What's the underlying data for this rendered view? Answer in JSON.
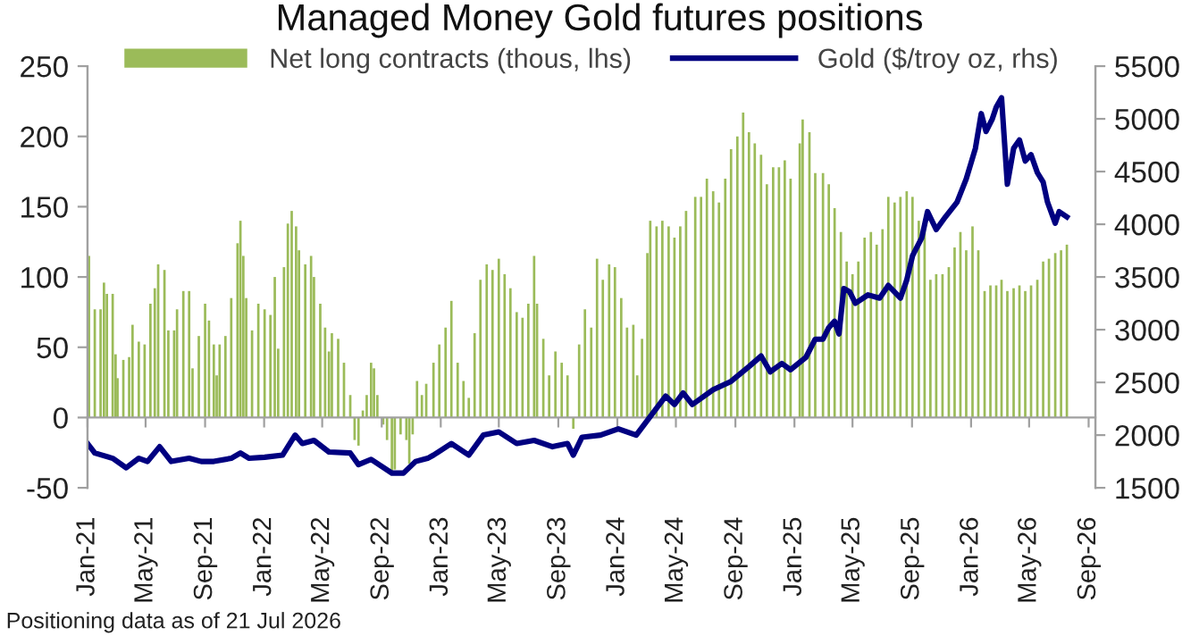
{
  "chart_data": {
    "type": "bar",
    "title": "Managed Money Gold futures positions",
    "annotations": [
      "Positioning data as of 21 Jul 2026"
    ],
    "xlim": [
      "2021-01-01",
      "2026-09-15"
    ],
    "xticks": [
      {
        "value": "2021-01-01",
        "label": "Jan-21"
      },
      {
        "value": "2021-05-01",
        "label": "May-21"
      },
      {
        "value": "2021-09-01",
        "label": "Sep-21"
      },
      {
        "value": "2022-01-01",
        "label": "Jan-22"
      },
      {
        "value": "2022-05-01",
        "label": "May-22"
      },
      {
        "value": "2022-09-01",
        "label": "Sep-22"
      },
      {
        "value": "2023-01-01",
        "label": "Jan-23"
      },
      {
        "value": "2023-05-01",
        "label": "May-23"
      },
      {
        "value": "2023-09-01",
        "label": "Sep-23"
      },
      {
        "value": "2024-01-01",
        "label": "Jan-24"
      },
      {
        "value": "2024-05-01",
        "label": "May-24"
      },
      {
        "value": "2024-09-01",
        "label": "Sep-24"
      },
      {
        "value": "2025-01-01",
        "label": "Jan-25"
      },
      {
        "value": "2025-05-01",
        "label": "May-25"
      },
      {
        "value": "2025-09-01",
        "label": "Sep-25"
      },
      {
        "value": "2026-01-01",
        "label": "Jan-26"
      },
      {
        "value": "2026-05-01",
        "label": "May-26"
      },
      {
        "value": "2026-09-01",
        "label": "Sep-26"
      }
    ],
    "ylim": [
      -50,
      250
    ],
    "yticks": [
      -50,
      0,
      50,
      100,
      150,
      200,
      250
    ],
    "y2lim": [
      1500,
      5500
    ],
    "y2ticks": [
      1500,
      2000,
      2500,
      3000,
      3500,
      4000,
      4500,
      5000,
      5500
    ],
    "legend": "top",
    "series": [
      {
        "name": "Net long contracts (thous, lhs)",
        "color": "#9bbb59",
        "x": [
          "2021-01-04",
          "2021-01-16",
          "2021-01-28",
          "2021-02-04",
          "2021-02-10",
          "2021-02-22",
          "2021-02-28",
          "2021-03-04",
          "2021-03-16",
          "2021-03-28",
          "2021-04-04",
          "2021-04-17",
          "2021-04-29",
          "2021-05-11",
          "2021-05-20",
          "2021-05-27",
          "2021-06-09",
          "2021-06-17",
          "2021-06-29",
          "2021-07-05",
          "2021-07-18",
          "2021-07-30",
          "2021-08-06",
          "2021-08-19",
          "2021-09-01",
          "2021-09-09",
          "2021-09-19",
          "2021-09-25",
          "2021-10-01",
          "2021-10-13",
          "2021-10-25",
          "2021-11-07",
          "2021-11-13",
          "2021-11-19",
          "2021-11-25",
          "2021-12-07",
          "2021-12-20",
          "2022-01-02",
          "2022-01-14",
          "2022-01-23",
          "2022-01-30",
          "2022-02-11",
          "2022-02-19",
          "2022-02-27",
          "2022-03-08",
          "2022-03-14",
          "2022-03-27",
          "2022-04-08",
          "2022-04-14",
          "2022-04-27",
          "2022-05-07",
          "2022-05-15",
          "2022-05-21",
          "2022-06-03",
          "2022-06-15",
          "2022-06-28",
          "2022-07-07",
          "2022-07-15",
          "2022-07-24",
          "2022-08-01",
          "2022-08-10",
          "2022-08-16",
          "2022-08-23",
          "2022-09-04",
          "2022-09-12",
          "2022-09-22",
          "2022-09-28",
          "2022-10-10",
          "2022-10-22",
          "2022-10-28",
          "2022-11-04",
          "2022-11-13",
          "2022-11-23",
          "2022-12-02",
          "2022-12-17",
          "2022-12-29",
          "2023-01-11",
          "2023-01-23",
          "2023-02-05",
          "2023-02-17",
          "2023-02-28",
          "2023-03-12",
          "2023-03-24",
          "2023-04-06",
          "2023-04-18",
          "2023-05-01",
          "2023-05-13",
          "2023-05-25",
          "2023-06-07",
          "2023-06-19",
          "2023-07-01",
          "2023-07-13",
          "2023-07-19",
          "2023-08-01",
          "2023-08-13",
          "2023-08-26",
          "2023-09-08",
          "2023-09-20",
          "2023-10-02",
          "2023-10-14",
          "2023-10-26",
          "2023-11-08",
          "2023-11-20",
          "2023-12-02",
          "2023-12-15",
          "2023-12-27",
          "2024-01-09",
          "2024-01-21",
          "2024-02-03",
          "2024-02-11",
          "2024-02-21",
          "2024-03-03",
          "2024-03-09",
          "2024-03-22",
          "2024-04-03",
          "2024-04-16",
          "2024-04-28",
          "2024-05-10",
          "2024-05-22",
          "2024-06-10",
          "2024-06-22",
          "2024-07-04",
          "2024-07-17",
          "2024-07-29",
          "2024-08-11",
          "2024-08-23",
          "2024-09-05",
          "2024-09-17",
          "2024-09-29",
          "2024-10-11",
          "2024-10-24",
          "2024-11-05",
          "2024-11-18",
          "2024-11-30",
          "2024-12-12",
          "2024-12-24",
          "2025-01-12",
          "2025-01-18",
          "2025-02-01",
          "2025-02-13",
          "2025-03-01",
          "2025-03-13",
          "2025-03-25",
          "2025-04-07",
          "2025-04-19",
          "2025-05-01",
          "2025-05-13",
          "2025-05-26",
          "2025-06-08",
          "2025-06-20",
          "2025-07-02",
          "2025-07-14",
          "2025-07-27",
          "2025-08-08",
          "2025-08-21",
          "2025-09-02",
          "2025-09-15",
          "2025-09-27",
          "2025-10-09",
          "2025-10-21",
          "2025-11-03",
          "2025-11-16",
          "2025-11-28",
          "2025-12-10",
          "2025-12-22",
          "2026-01-04",
          "2026-01-16",
          "2026-01-29",
          "2026-02-10",
          "2026-02-22",
          "2026-03-05",
          "2026-03-17",
          "2026-03-30",
          "2026-04-11",
          "2026-04-23",
          "2026-05-05",
          "2026-05-18",
          "2026-05-30",
          "2026-06-11",
          "2026-06-24",
          "2026-07-06",
          "2026-07-18"
        ],
        "values": [
          115,
          77,
          77,
          96,
          88,
          88,
          45,
          28,
          41,
          43,
          66,
          54,
          52,
          81,
          92,
          109,
          105,
          62,
          62,
          77,
          90,
          90,
          35,
          58,
          81,
          69,
          52,
          30,
          52,
          58,
          85,
          124,
          140,
          115,
          85,
          62,
          81,
          77,
          73,
          100,
          49,
          107,
          138,
          147,
          136,
          119,
          109,
          115,
          100,
          81,
          64,
          47,
          60,
          56,
          39,
          16,
          -16,
          -20,
          5,
          16,
          39,
          35,
          16,
          -5,
          -16,
          -41,
          -37,
          -12,
          -16,
          -33,
          -12,
          26,
          16,
          24,
          39,
          52,
          64,
          83,
          39,
          26,
          14,
          60,
          98,
          109,
          105,
          113,
          102,
          92,
          75,
          71,
          81,
          115,
          81,
          56,
          30,
          47,
          39,
          30,
          -8,
          52,
          77,
          64,
          113,
          98,
          109,
          107,
          85,
          64,
          66,
          30,
          56,
          117,
          140,
          136,
          140,
          136,
          128,
          136,
          147,
          157,
          157,
          170,
          161,
          153,
          170,
          191,
          200,
          217,
          203,
          195,
          187,
          166,
          178,
          178,
          183,
          170,
          195,
          212,
          203,
          174,
          174,
          166,
          149,
          132,
          111,
          102,
          111,
          128,
          132,
          123,
          134,
          157,
          153,
          157,
          161,
          157,
          140,
          136,
          98,
          102,
          102,
          107,
          121,
          132,
          119,
          136,
          119,
          90,
          94,
          94,
          98,
          90,
          92,
          94,
          90,
          94,
          98,
          111,
          113,
          117,
          119,
          123
        ]
      },
      {
        "name": "Gold ($/troy oz, rhs)",
        "type": "line",
        "axis": "y2",
        "color": "#000080",
        "x": [
          "2021-01-01",
          "2021-01-16",
          "2021-02-22",
          "2021-03-22",
          "2021-04-17",
          "2021-05-05",
          "2021-05-30",
          "2021-06-23",
          "2021-07-30",
          "2021-08-24",
          "2021-09-19",
          "2021-10-25",
          "2021-11-13",
          "2021-12-01",
          "2022-01-02",
          "2022-02-08",
          "2022-03-06",
          "2022-03-21",
          "2022-04-14",
          "2022-05-15",
          "2022-06-28",
          "2022-07-15",
          "2022-08-10",
          "2022-09-22",
          "2022-10-16",
          "2022-11-10",
          "2022-12-05",
          "2022-12-17",
          "2023-01-23",
          "2023-02-28",
          "2023-03-30",
          "2023-05-01",
          "2023-06-07",
          "2023-07-13",
          "2023-08-20",
          "2023-09-20",
          "2023-10-02",
          "2023-10-20",
          "2023-11-27",
          "2024-01-03",
          "2024-02-09",
          "2024-03-03",
          "2024-04-10",
          "2024-04-28",
          "2024-05-16",
          "2024-06-04",
          "2024-07-17",
          "2024-08-23",
          "2024-09-29",
          "2024-10-24",
          "2024-11-12",
          "2024-12-06",
          "2024-12-24",
          "2025-01-25",
          "2025-02-13",
          "2025-03-01",
          "2025-03-13",
          "2025-03-25",
          "2025-04-03",
          "2025-04-13",
          "2025-04-25",
          "2025-05-07",
          "2025-06-02",
          "2025-06-26",
          "2025-07-14",
          "2025-08-08",
          "2025-08-21",
          "2025-09-02",
          "2025-09-21",
          "2025-10-03",
          "2025-10-21",
          "2025-11-09",
          "2025-12-03",
          "2025-12-22",
          "2026-01-10",
          "2026-01-22",
          "2026-02-01",
          "2026-02-14",
          "2026-02-22",
          "2026-03-05",
          "2026-03-17",
          "2026-03-30",
          "2026-04-11",
          "2026-04-23",
          "2026-05-05",
          "2026-05-18",
          "2026-05-30",
          "2026-06-08",
          "2026-06-24",
          "2026-07-02",
          "2026-07-18"
        ],
        "values": [
          1920,
          1830,
          1780,
          1690,
          1780,
          1750,
          1890,
          1750,
          1780,
          1750,
          1750,
          1780,
          1830,
          1780,
          1790,
          1810,
          2000,
          1920,
          1950,
          1840,
          1830,
          1720,
          1770,
          1640,
          1640,
          1750,
          1780,
          1810,
          1920,
          1810,
          2000,
          2030,
          1920,
          1950,
          1890,
          1920,
          1810,
          1980,
          2000,
          2060,
          2000,
          2140,
          2370,
          2290,
          2400,
          2290,
          2430,
          2510,
          2650,
          2750,
          2600,
          2680,
          2620,
          2740,
          2910,
          2910,
          3020,
          3080,
          2960,
          3390,
          3360,
          3250,
          3330,
          3300,
          3420,
          3300,
          3470,
          3700,
          3870,
          4120,
          3950,
          4070,
          4210,
          4430,
          4720,
          5050,
          4880,
          5000,
          5110,
          5200,
          4380,
          4720,
          4800,
          4600,
          4660,
          4490,
          4400,
          4210,
          4010,
          4120,
          4070
        ]
      }
    ]
  }
}
